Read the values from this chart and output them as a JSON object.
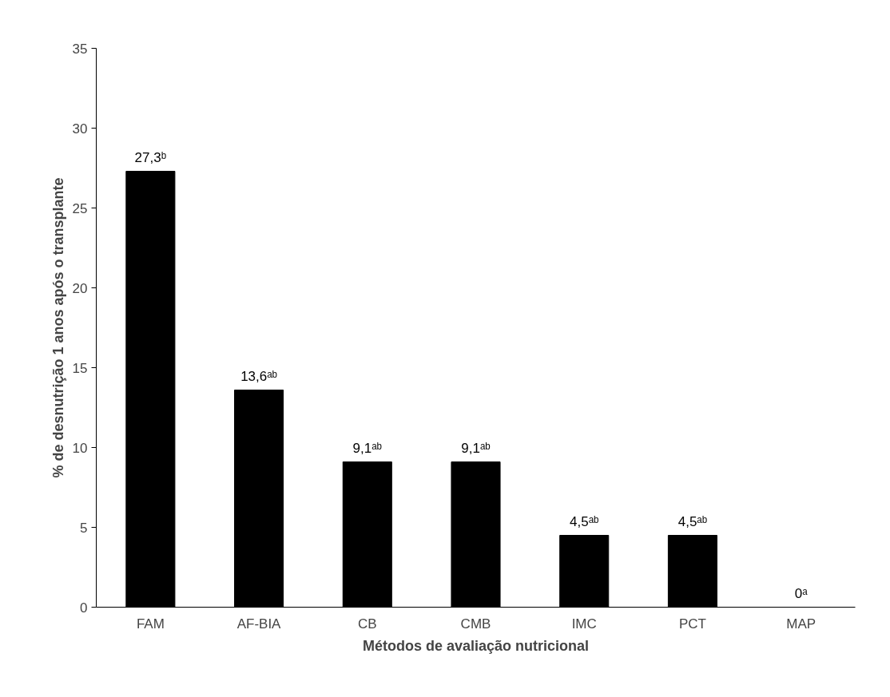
{
  "chart_data": {
    "type": "bar",
    "xlabel": "Métodos de avaliação nutricional",
    "ylabel": "% de desnutrição 1 anos após o transplante",
    "categories": [
      "FAM",
      "AF-BIA",
      "CB",
      "CMB",
      "IMC",
      "PCT",
      "MAP"
    ],
    "series": [
      {
        "color": "#000000",
        "values": [
          27.3,
          13.6,
          9.1,
          9.1,
          4.5,
          4.5,
          0
        ]
      }
    ],
    "value_labels": [
      "27,3ᵇ",
      "13,6ᵃᵇ",
      "9,1ᵃᵇ",
      "9,1ᵃᵇ",
      "4,5ᵃᵇ",
      "4,5ᵃᵇ",
      "0ᵃ"
    ],
    "ylim": [
      0,
      35
    ],
    "yticks": [
      0,
      5,
      10,
      15,
      20,
      25,
      30,
      35
    ],
    "grid": false
  }
}
